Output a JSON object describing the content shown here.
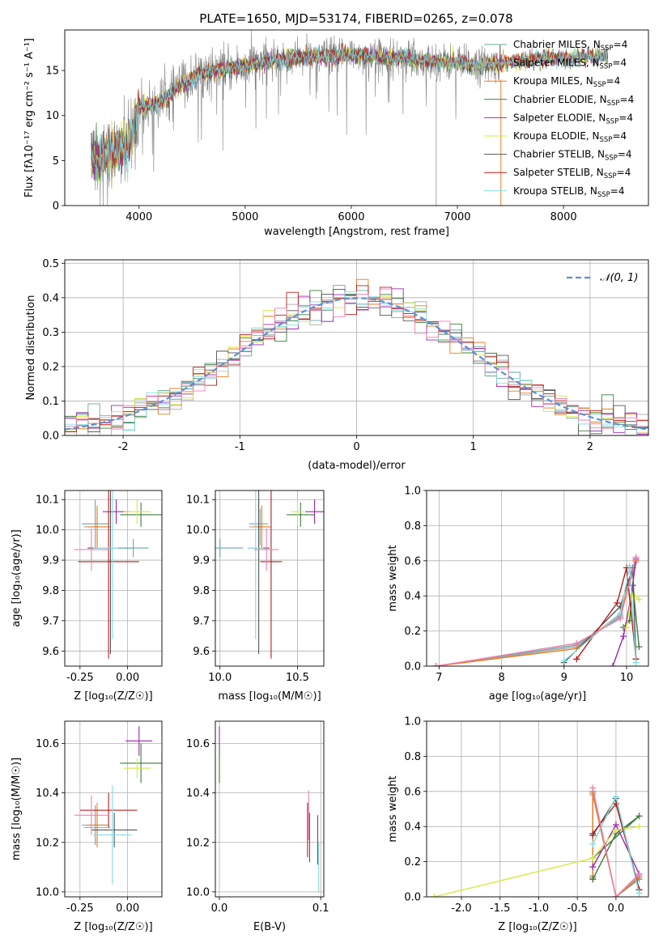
{
  "figure": {
    "title": "PLATE=1650, MJD=53174, FIBERID=0265, z=0.078"
  },
  "colors": {
    "Chabrier MILES": "#6aa6a3",
    "Salpeter MILES": "#a8a8a8",
    "Kroupa MILES": "#e87d1e",
    "Chabrier ELODIE": "#3f7a3f",
    "Salpeter ELODIE": "#9b27b0",
    "Kroupa ELODIE": "#d8e840",
    "Chabrier STELIB": "#555555",
    "Salpeter STELIB": "#b71c1c",
    "Kroupa STELIB": "#7fdde0",
    "pink": "#f07fb0",
    "normal": "#5b8fd6"
  },
  "legend_labels": [
    {
      "name": "Chabrier MILES",
      "suffix": ", N",
      "sub": "SSP",
      "tail": "=4"
    },
    {
      "name": "Salpeter MILES",
      "suffix": ", N",
      "sub": "SSP",
      "tail": "=4"
    },
    {
      "name": "Kroupa MILES",
      "suffix": ", N",
      "sub": "SSP",
      "tail": "=4"
    },
    {
      "name": "Chabrier ELODIE",
      "suffix": ", N",
      "sub": "SSP",
      "tail": "=4"
    },
    {
      "name": "Salpeter ELODIE",
      "suffix": ", N",
      "sub": "SSP",
      "tail": "=4"
    },
    {
      "name": "Kroupa ELODIE",
      "suffix": ", N",
      "sub": "SSP",
      "tail": "=4"
    },
    {
      "name": "Chabrier STELIB",
      "suffix": ", N",
      "sub": "SSP",
      "tail": "=4"
    },
    {
      "name": "Salpeter STELIB",
      "suffix": ", N",
      "sub": "SSP",
      "tail": "=4"
    },
    {
      "name": "Kroupa STELIB",
      "suffix": ", N",
      "sub": "SSP",
      "tail": "=4"
    }
  ],
  "chart_data": [
    {
      "id": "spectrum",
      "type": "line",
      "xlabel": "wavelength [Angstrom, rest frame]",
      "ylabel": "Flux [fλ10⁻¹⁷ erg cm⁻² s⁻¹ A⁻¹]",
      "xlim": [
        3300,
        8800
      ],
      "ylim": [
        0,
        19.5
      ],
      "xticks": [
        4000,
        5000,
        6000,
        7000,
        8000
      ],
      "yticks": [
        0,
        5,
        10,
        15
      ],
      "continuum": {
        "x": [
          3550,
          3700,
          3900,
          4000,
          4200,
          4400,
          4600,
          4800,
          5000,
          5300,
          5600,
          5900,
          6200,
          6500,
          6800,
          7000,
          7200,
          7400,
          7600,
          8000,
          8400
        ],
        "y": [
          5.0,
          5.8,
          6.6,
          10.8,
          11.5,
          13.4,
          14.8,
          15.1,
          15.5,
          16.2,
          16.5,
          16.7,
          16.6,
          16.4,
          16.0,
          15.8,
          15.6,
          15.7,
          16.1,
          16.4,
          16.6
        ]
      },
      "data_range": [
        3550,
        7420
      ],
      "model_range": [
        3550,
        8420
      ],
      "dips": [
        {
          "x": 6800,
          "y": 0
        },
        {
          "x": 7410,
          "y": 0
        }
      ]
    },
    {
      "id": "residuals",
      "type": "histogram",
      "xlabel": "(data-model)/error",
      "ylabel": "Normed distribution",
      "xlim": [
        -2.5,
        2.5
      ],
      "ylim": [
        0,
        0.51
      ],
      "xticks": [
        -2,
        -1,
        0,
        1,
        2
      ],
      "yticks": [
        0.0,
        0.1,
        0.2,
        0.3,
        0.4,
        0.5
      ],
      "bin_width": 0.1,
      "legend": "𝒩(0, 1)"
    },
    {
      "id": "age_Z",
      "type": "errorbar",
      "xlabel": "Z [log₁₀(Z/Z☉)]",
      "ylabel": "age  [log₁₀(age/yr)]",
      "xlim": [
        -0.33,
        0.18
      ],
      "ylim": [
        9.55,
        10.13
      ],
      "xticks": [
        -0.25,
        0.0
      ],
      "yticks": [
        9.6,
        9.7,
        9.8,
        9.9,
        10.0,
        10.1
      ],
      "points": [
        {
          "series": "Chabrier MILES",
          "x": -0.17,
          "xerr": 0.07,
          "y": 10.02,
          "yerr": 0.08
        },
        {
          "series": "Salpeter MILES",
          "x": -0.16,
          "xerr": 0.07,
          "y": 10.01,
          "yerr": 0.06
        },
        {
          "series": "Kroupa MILES",
          "x": -0.16,
          "xerr": 0.05,
          "y": 10.01,
          "yerr": 0.07
        },
        {
          "series": "Chabrier ELODIE",
          "x": 0.07,
          "xerr": 0.11,
          "y": 10.05,
          "yerr": 0.04
        },
        {
          "series": "Salpeter ELODIE",
          "x": -0.06,
          "xerr": 0.07,
          "y": 10.06,
          "yerr": 0.04
        },
        {
          "series": "Kroupa ELODIE",
          "x": 0.05,
          "xerr": 0.07,
          "y": 10.06,
          "yerr": 0.04
        },
        {
          "series": "Chabrier STELIB",
          "x": -0.09,
          "xerr": 0.12,
          "y": 9.94,
          "yerr": 0.35
        },
        {
          "series": "Salpeter STELIB",
          "x": -0.1,
          "xerr": 0.16,
          "y": 9.895,
          "yerr": 0.32
        },
        {
          "series": "Kroupa STELIB",
          "x": -0.08,
          "xerr": 0.1,
          "y": 9.94,
          "yerr": 0.3
        },
        {
          "series": "pink",
          "x": -0.19,
          "xerr": 0.09,
          "y": 9.935,
          "yerr": 0.07
        },
        {
          "series": "Chabrier MILES",
          "x": 0.03,
          "xerr": 0.08,
          "y": 9.94,
          "yerr": 0.03
        }
      ]
    },
    {
      "id": "age_mass",
      "type": "errorbar",
      "xlabel": "mass [log₁₀(M/M☉)]",
      "ylabel": "",
      "xlim": [
        9.97,
        10.67
      ],
      "ylim": [
        9.55,
        10.13
      ],
      "xticks": [
        10.0,
        10.5
      ],
      "yticks": [
        9.6,
        9.7,
        9.8,
        9.9,
        10.0,
        10.1
      ],
      "points": [
        {
          "series": "Chabrier MILES",
          "x": 10.25,
          "xerr": 0.06,
          "y": 10.02,
          "yerr": 0.08
        },
        {
          "series": "Salpeter MILES",
          "x": 10.26,
          "xerr": 0.07,
          "y": 10.01,
          "yerr": 0.06
        },
        {
          "series": "Kroupa MILES",
          "x": 10.27,
          "xerr": 0.05,
          "y": 10.01,
          "yerr": 0.07
        },
        {
          "series": "Chabrier ELODIE",
          "x": 10.52,
          "xerr": 0.09,
          "y": 10.05,
          "yerr": 0.04
        },
        {
          "series": "Salpeter ELODIE",
          "x": 10.61,
          "xerr": 0.06,
          "y": 10.06,
          "yerr": 0.04
        },
        {
          "series": "Kroupa ELODIE",
          "x": 10.5,
          "xerr": 0.04,
          "y": 10.06,
          "yerr": 0.04
        },
        {
          "series": "Chabrier STELIB",
          "x": 10.25,
          "xerr": 0.07,
          "y": 9.94,
          "yerr": 0.35
        },
        {
          "series": "Salpeter STELIB",
          "x": 10.33,
          "xerr": 0.07,
          "y": 9.895,
          "yerr": 0.32
        },
        {
          "series": "Kroupa STELIB",
          "x": 10.23,
          "xerr": 0.05,
          "y": 9.94,
          "yerr": 0.3
        },
        {
          "series": "pink",
          "x": 10.3,
          "xerr": 0.08,
          "y": 9.935,
          "yerr": 0.07
        },
        {
          "series": "Chabrier MILES",
          "x": 10.0,
          "xerr": 0.15,
          "y": 9.94,
          "yerr": 0.03
        }
      ]
    },
    {
      "id": "mass_weight_age",
      "type": "line",
      "xlabel": "age  [log₁₀(age/yr)]",
      "ylabel": "mass weight",
      "xlim": [
        6.8,
        10.35
      ],
      "ylim": [
        0,
        1.0
      ],
      "xticks": [
        7,
        8,
        9,
        10
      ],
      "yticks": [
        0.0,
        0.2,
        0.4,
        0.6,
        0.8,
        1.0
      ],
      "series": [
        {
          "name": "Chabrier MILES",
          "x": [
            6.95,
            9.2,
            9.9,
            10.15
          ],
          "y": [
            0.0,
            0.12,
            0.28,
            0.6
          ]
        },
        {
          "name": "Salpeter MILES",
          "x": [
            6.95,
            9.2,
            9.9,
            10.15
          ],
          "y": [
            0.0,
            0.11,
            0.29,
            0.59
          ]
        },
        {
          "name": "Kroupa MILES",
          "x": [
            6.95,
            9.2,
            9.9,
            10.15
          ],
          "y": [
            0.0,
            0.1,
            0.3,
            0.6
          ]
        },
        {
          "name": "Chabrier ELODIE",
          "x": [
            9.95,
            10.05,
            10.1,
            10.2
          ],
          "y": [
            0.22,
            0.26,
            0.46,
            0.11
          ]
        },
        {
          "name": "Salpeter ELODIE",
          "x": [
            9.78,
            9.95,
            10.08,
            10.15
          ],
          "y": [
            0.0,
            0.17,
            0.41,
            0.61
          ]
        },
        {
          "name": "Kroupa ELODIE",
          "x": [
            10.0,
            10.08,
            10.13,
            10.2
          ],
          "y": [
            0.22,
            0.41,
            0.4,
            0.38
          ]
        },
        {
          "name": "Chabrier STELIB",
          "x": [
            9.0,
            9.9,
            10.1,
            10.15
          ],
          "y": [
            0.02,
            0.34,
            0.56,
            0.04
          ]
        },
        {
          "name": "Salpeter STELIB",
          "x": [
            9.2,
            9.85,
            10.0,
            10.15
          ],
          "y": [
            0.04,
            0.36,
            0.56,
            0.04
          ]
        },
        {
          "name": "Kroupa STELIB",
          "x": [
            9.0,
            9.9,
            10.05,
            10.15
          ],
          "y": [
            0.03,
            0.3,
            0.57,
            0.02
          ]
        },
        {
          "name": "pink",
          "x": [
            6.95,
            9.2,
            9.9,
            10.15
          ],
          "y": [
            0.0,
            0.13,
            0.27,
            0.62
          ]
        }
      ]
    },
    {
      "id": "mass_Z",
      "type": "errorbar",
      "xlabel": "Z [log₁₀(Z/Z☉)]",
      "ylabel": "mass [log₁₀(M/M☉)]",
      "xlim": [
        -0.33,
        0.18
      ],
      "ylim": [
        9.98,
        10.69
      ],
      "xticks": [
        -0.25,
        0.0
      ],
      "yticks": [
        10.0,
        10.2,
        10.4,
        10.6
      ],
      "points": [
        {
          "series": "Chabrier MILES",
          "x": -0.17,
          "xerr": 0.07,
          "y": 10.27,
          "yerr": 0.08
        },
        {
          "series": "Salpeter MILES",
          "x": -0.16,
          "xerr": 0.07,
          "y": 10.26,
          "yerr": 0.07
        },
        {
          "series": "Kroupa MILES",
          "x": -0.16,
          "xerr": 0.05,
          "y": 10.27,
          "yerr": 0.09
        },
        {
          "series": "Chabrier ELODIE",
          "x": 0.07,
          "xerr": 0.11,
          "y": 10.52,
          "yerr": 0.08
        },
        {
          "series": "Salpeter ELODIE",
          "x": 0.06,
          "xerr": 0.07,
          "y": 10.61,
          "yerr": 0.06
        },
        {
          "series": "Kroupa ELODIE",
          "x": 0.05,
          "xerr": 0.07,
          "y": 10.5,
          "yerr": 0.04
        },
        {
          "series": "Chabrier STELIB",
          "x": -0.07,
          "xerr": 0.12,
          "y": 10.25,
          "yerr": 0.07
        },
        {
          "series": "Salpeter STELIB",
          "x": -0.1,
          "xerr": 0.15,
          "y": 10.33,
          "yerr": 0.07
        },
        {
          "series": "Kroupa STELIB",
          "x": -0.08,
          "xerr": 0.1,
          "y": 10.23,
          "yerr": 0.2
        },
        {
          "series": "pink",
          "x": -0.19,
          "xerr": 0.09,
          "y": 10.31,
          "yerr": 0.08
        }
      ]
    },
    {
      "id": "mass_EBV",
      "type": "errorbar",
      "xlabel": "E(B-V)",
      "ylabel": "",
      "xlim": [
        -0.004,
        0.103
      ],
      "ylim": [
        9.98,
        10.69
      ],
      "xticks": [
        0.0,
        0.1
      ],
      "yticks": [
        10.0,
        10.2,
        10.4,
        10.6
      ],
      "points": [
        {
          "series": "Salpeter ELODIE",
          "x": 0.0,
          "xerr": 0,
          "y": 10.61,
          "yerr": 0.06
        },
        {
          "series": "Kroupa ELODIE",
          "x": 0.0,
          "xerr": 0,
          "y": 10.5,
          "yerr": 0.06
        },
        {
          "series": "Chabrier ELODIE",
          "x": 0.0,
          "xerr": 0,
          "y": 10.52,
          "yerr": 0.08
        },
        {
          "series": "pink",
          "x": 0.088,
          "xerr": 0,
          "y": 10.31,
          "yerr": 0.1
        },
        {
          "series": "Salpeter STELIB",
          "x": 0.087,
          "xerr": 0,
          "y": 10.25,
          "yerr": 0.11
        },
        {
          "series": "Salpeter ELODIE",
          "x": 0.089,
          "xerr": 0,
          "y": 10.22,
          "yerr": 0.1
        },
        {
          "series": "Chabrier STELIB",
          "x": 0.097,
          "xerr": 0,
          "y": 10.21,
          "yerr": 0.1
        },
        {
          "series": "Kroupa STELIB",
          "x": 0.098,
          "xerr": 0,
          "y": 10.1,
          "yerr": 0.1
        }
      ]
    },
    {
      "id": "mass_weight_Z",
      "type": "line",
      "xlabel": "Z [log₁₀(Z/Z☉)]",
      "ylabel": "mass weight",
      "xlim": [
        -2.45,
        0.42
      ],
      "ylim": [
        0,
        1.0
      ],
      "xticks": [
        -2.0,
        -1.5,
        -1.0,
        -0.5,
        0.0
      ],
      "yticks": [
        0.0,
        0.2,
        0.4,
        0.6,
        0.8,
        1.0
      ],
      "series": [
        {
          "name": "Chabrier MILES",
          "x": [
            -0.3,
            -0.3,
            0.0,
            0.3
          ],
          "y": [
            0.1,
            0.6,
            0.0,
            0.1
          ]
        },
        {
          "name": "Salpeter MILES",
          "x": [
            -0.3,
            -0.3,
            0.0,
            0.3
          ],
          "y": [
            0.12,
            0.58,
            0.0,
            0.12
          ]
        },
        {
          "name": "Kroupa MILES",
          "x": [
            -0.3,
            -0.3,
            0.0,
            0.3
          ],
          "y": [
            0.11,
            0.59,
            0.0,
            0.11
          ]
        },
        {
          "name": "Chabrier ELODIE",
          "x": [
            -0.3,
            0.0,
            0.3,
            -0.3
          ],
          "y": [
            0.1,
            0.36,
            0.46,
            0.22
          ]
        },
        {
          "name": "Salpeter ELODIE",
          "x": [
            -0.3,
            0.0,
            0.3
          ],
          "y": [
            0.17,
            0.41,
            0.13
          ]
        },
        {
          "name": "Kroupa ELODIE",
          "x": [
            -2.35,
            -0.3,
            0.0,
            0.3
          ],
          "y": [
            0.0,
            0.22,
            0.38,
            0.4
          ]
        },
        {
          "name": "Chabrier STELIB",
          "x": [
            -0.3,
            0.0,
            0.3
          ],
          "y": [
            0.35,
            0.56,
            0.04
          ]
        },
        {
          "name": "Salpeter STELIB",
          "x": [
            -0.3,
            0.0,
            0.3
          ],
          "y": [
            0.36,
            0.53,
            0.04
          ]
        },
        {
          "name": "Kroupa STELIB",
          "x": [
            -0.3,
            0.0,
            0.3
          ],
          "y": [
            0.3,
            0.57,
            0.02
          ]
        },
        {
          "name": "pink",
          "x": [
            -0.3,
            0.0,
            0.3
          ],
          "y": [
            0.62,
            0.0,
            0.13
          ]
        }
      ]
    }
  ]
}
